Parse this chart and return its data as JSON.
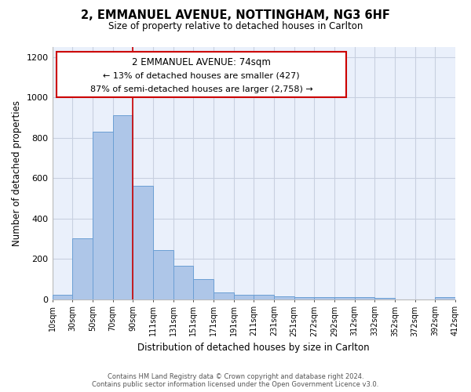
{
  "title_line1": "2, EMMANUEL AVENUE, NOTTINGHAM, NG3 6HF",
  "title_line2": "Size of property relative to detached houses in Carlton",
  "xlabel": "Distribution of detached houses by size in Carlton",
  "ylabel": "Number of detached properties",
  "footer_line1": "Contains HM Land Registry data © Crown copyright and database right 2024.",
  "footer_line2": "Contains public sector information licensed under the Open Government Licence v3.0.",
  "annotation_line1": "2 EMMANUEL AVENUE: 74sqm",
  "annotation_line2": "← 13% of detached houses are smaller (427)",
  "annotation_line3": "87% of semi-detached houses are larger (2,758) →",
  "bar_labels": [
    "10sqm",
    "30sqm",
    "50sqm",
    "70sqm",
    "90sqm",
    "111sqm",
    "131sqm",
    "151sqm",
    "171sqm",
    "191sqm",
    "211sqm",
    "231sqm",
    "251sqm",
    "272sqm",
    "292sqm",
    "312sqm",
    "332sqm",
    "352sqm",
    "372sqm",
    "392sqm",
    "412sqm"
  ],
  "bar_values": [
    20,
    300,
    830,
    910,
    560,
    245,
    165,
    100,
    35,
    20,
    20,
    12,
    10,
    10,
    10,
    8,
    5,
    0,
    0,
    8
  ],
  "bar_color": "#aec6e8",
  "bar_edge_color": "#6b9fd4",
  "grid_color": "#c8d0e0",
  "background_color": "#eaf0fb",
  "ylim": [
    0,
    1250
  ],
  "yticks": [
    0,
    200,
    400,
    600,
    800,
    1000,
    1200
  ]
}
